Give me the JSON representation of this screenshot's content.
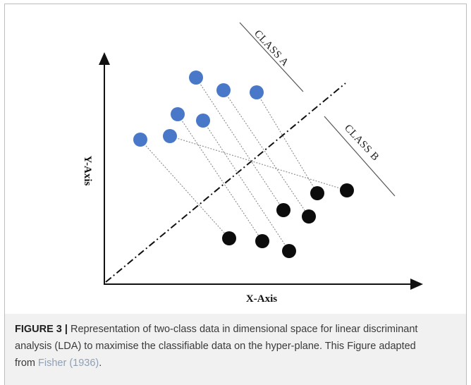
{
  "diagram": {
    "x_axis_title": "X-Axis",
    "y_axis_title": "Y-Axis",
    "class_a_label": "CLASS A",
    "class_b_label": "CLASS B",
    "colors": {
      "class_a": "#4a78c8",
      "class_b": "#0c0c0c",
      "axis": "#111111",
      "projection": "#8a8a8a"
    }
  },
  "caption": {
    "label": "FIGURE 3 |",
    "text": " Representation of two-class data in dimensional space for linear discriminant analysis (LDA) to maximise the classifiable data on the hyper-plane. This Figure adapted from ",
    "reference": "Fisher (1936)",
    "end": "."
  }
}
